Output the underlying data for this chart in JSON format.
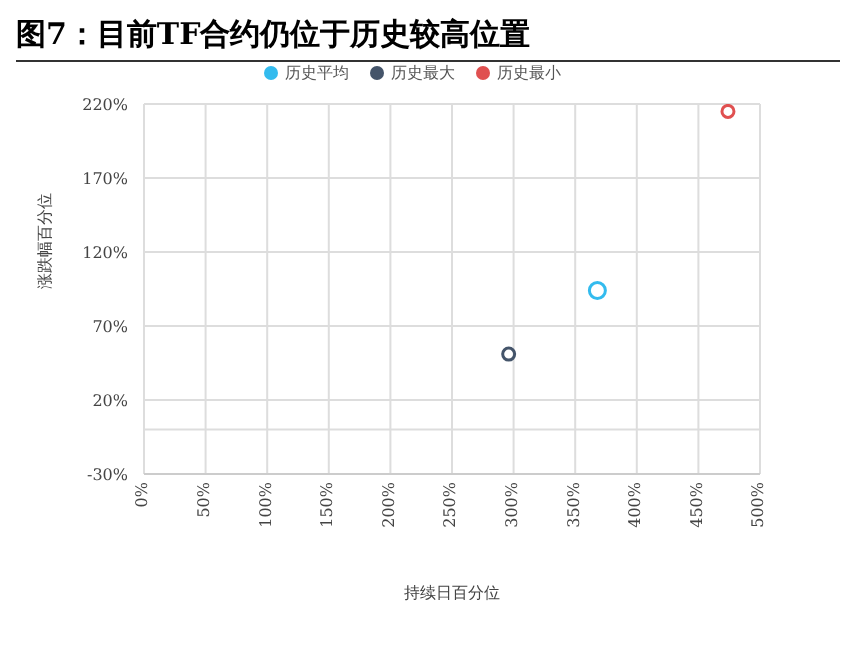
{
  "chart_data": {
    "type": "scatter",
    "title": "图7：目前TF合约仍位于历史较高位置",
    "xlabel": "持续日百分位",
    "ylabel": "涨跌幅百分位",
    "series": [
      {
        "name": "历史平均",
        "color": "#33bbee",
        "x": [
          368
        ],
        "values": [
          94
        ]
      },
      {
        "name": "历史最大",
        "color": "#44546a",
        "x": [
          296
        ],
        "values": [
          51
        ]
      },
      {
        "name": "历史最小",
        "color": "#e05050",
        "x": [
          474
        ],
        "values": [
          215
        ]
      }
    ],
    "xlim": [
      0,
      500
    ],
    "xticks": [
      {
        "value": 0,
        "label": "0%"
      },
      {
        "value": 50,
        "label": "50%"
      },
      {
        "value": 100,
        "label": "100%"
      },
      {
        "value": 150,
        "label": "150%"
      },
      {
        "value": 200,
        "label": "200%"
      },
      {
        "value": 250,
        "label": "250%"
      },
      {
        "value": 300,
        "label": "300%"
      },
      {
        "value": 350,
        "label": "350%"
      },
      {
        "value": 400,
        "label": "400%"
      },
      {
        "value": 450,
        "label": "450%"
      },
      {
        "value": 500,
        "label": "500%"
      }
    ],
    "ylim": [
      -30,
      220
    ],
    "yticks": [
      {
        "value": -30,
        "label": "-30%"
      },
      {
        "value": 0,
        "label": null
      },
      {
        "value": 20,
        "label": "20%"
      },
      {
        "value": 70,
        "label": "70%"
      },
      {
        "value": 120,
        "label": "120%"
      },
      {
        "value": 170,
        "label": "170%"
      },
      {
        "value": 220,
        "label": "220%"
      }
    ],
    "grid": true,
    "legend": "top",
    "marker": "circle"
  }
}
